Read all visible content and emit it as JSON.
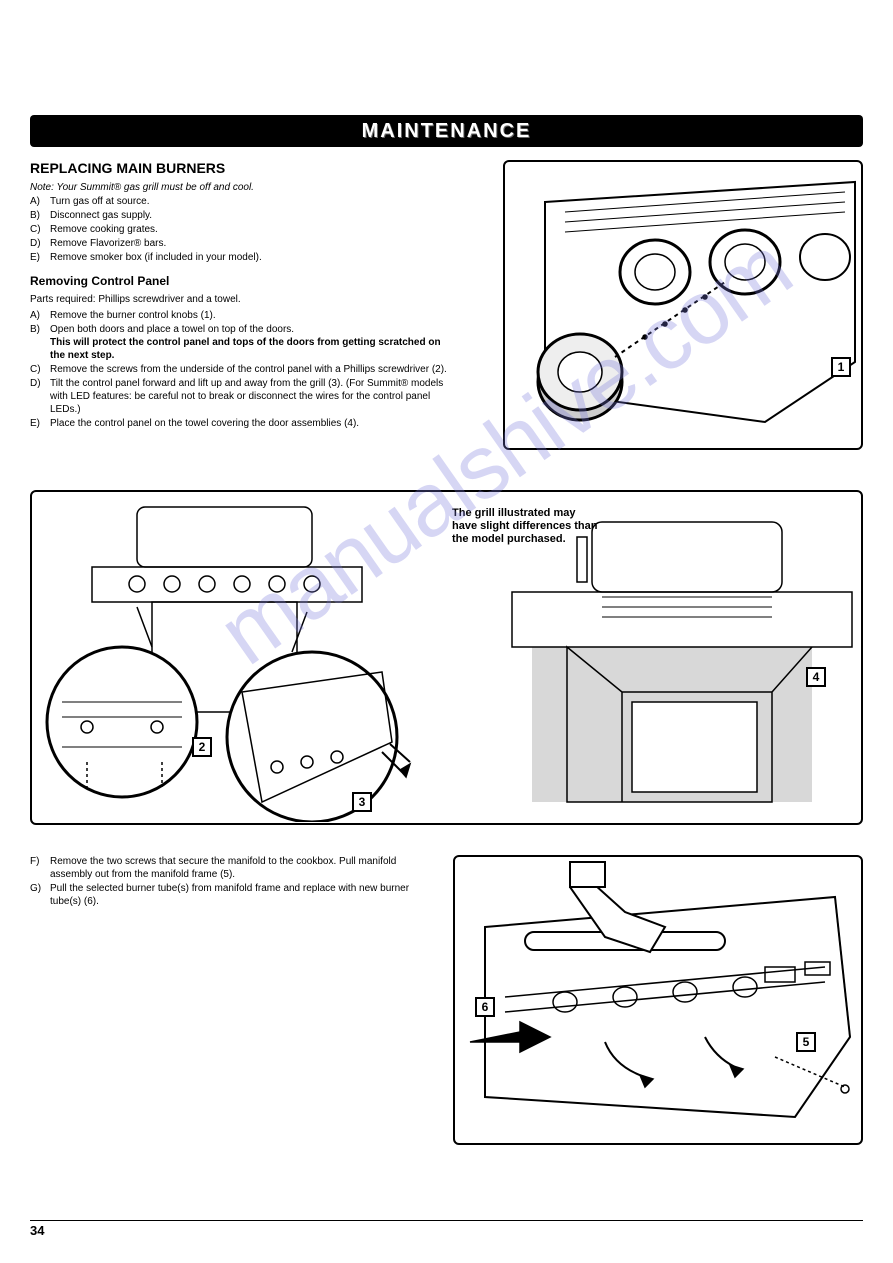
{
  "banner": "MAINTENANCE",
  "section1": {
    "title": "REPLACING MAIN BURNERS",
    "note": "Note: Your Summit® gas grill must be off and cool.",
    "steps": [
      {
        "l": "A)",
        "t": "Turn gas off at source."
      },
      {
        "l": "B)",
        "t": "Disconnect gas supply."
      },
      {
        "l": "C)",
        "t": "Remove cooking grates."
      },
      {
        "l": "D)",
        "t": "Remove Flavorizer® bars."
      },
      {
        "l": "E)",
        "t": "Remove smoker box (if included in your model)."
      }
    ]
  },
  "section2": {
    "title": "Removing Control Panel",
    "parts": "Parts required: Phillips screwdriver and a towel.",
    "steps": [
      {
        "l": "A)",
        "t": "Remove the burner control knobs (1)."
      },
      {
        "l": "B)",
        "t": "Open both doors and place a towel on top of the doors.",
        "bold": "This will protect the control panel and tops of the doors from getting scratched on the next step."
      },
      {
        "l": "C)",
        "t": "Remove the screws from the underside of the control panel with a Phillips screwdriver (2)."
      },
      {
        "l": "D)",
        "t": "Tilt the control panel forward and lift up and away from the grill (3). (For Summit® models with LED features: be careful not to break or disconnect the wires for the control panel LEDs.)"
      },
      {
        "l": "E)",
        "t": "Place the control panel on the towel covering the door assemblies (4)."
      }
    ]
  },
  "lowerSteps": [
    {
      "l": "F)",
      "t": "Remove the two screws that secure the manifold to the cookbox. Pull manifold assembly out from the manifold frame (5)."
    },
    {
      "l": "G)",
      "t": "Pull the selected burner tube(s) from manifold frame and replace with new burner tube(s) (6)."
    }
  ],
  "figNote": "The grill illustrated may have slight differences than the model purchased.",
  "callouts": {
    "c1": "1",
    "c2": "2",
    "c3": "3",
    "c4": "4",
    "c5": "5",
    "c6": "6"
  },
  "pageNum": "34",
  "watermark": "manualshive.com",
  "colors": {
    "black": "#000000",
    "white": "#ffffff",
    "grey": "#d8d8d8",
    "wm": "rgba(120,120,220,0.3)"
  }
}
